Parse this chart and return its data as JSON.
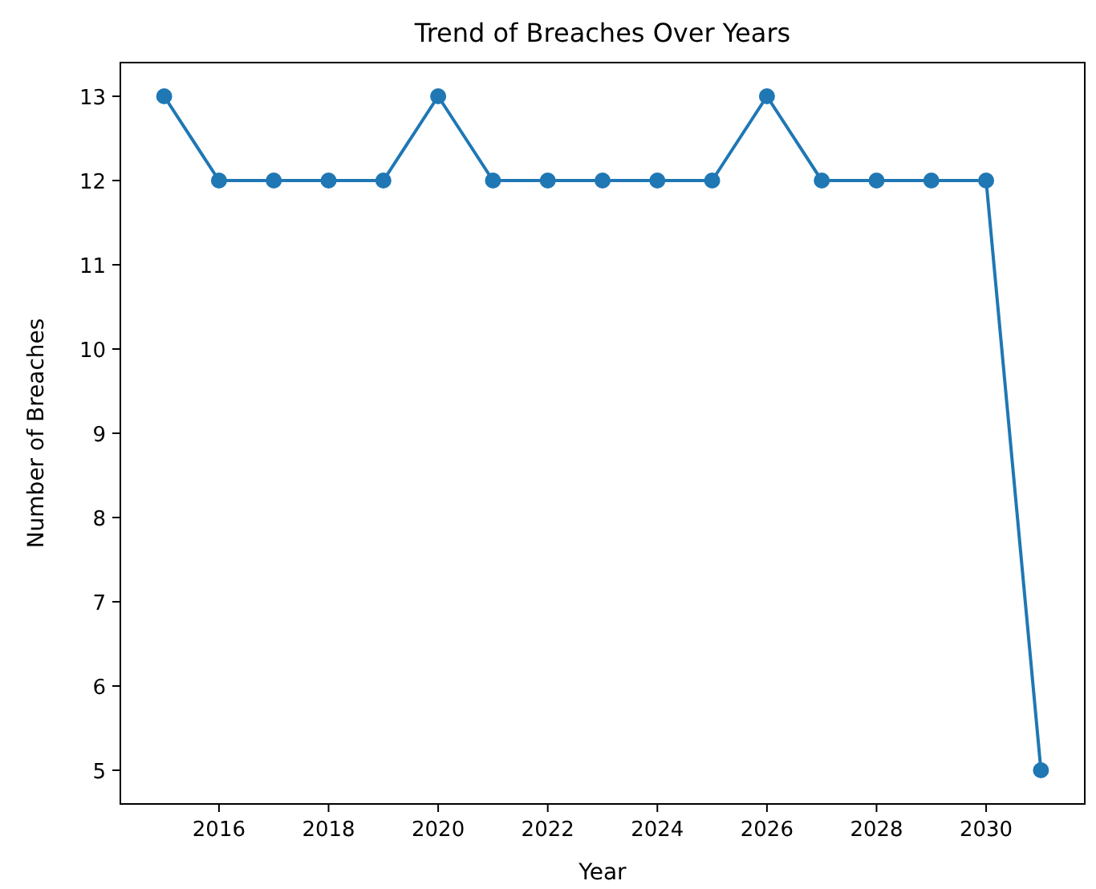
{
  "chart_data": {
    "type": "line",
    "title": "Trend of Breaches Over Years",
    "xlabel": "Year",
    "ylabel": "Number of Breaches",
    "x": [
      2015,
      2016,
      2017,
      2018,
      2019,
      2020,
      2021,
      2022,
      2023,
      2024,
      2025,
      2026,
      2027,
      2028,
      2029,
      2030,
      2031
    ],
    "series": [
      {
        "color": "#1f77b4",
        "values": [
          13,
          12,
          12,
          12,
          12,
          13,
          12,
          12,
          12,
          12,
          12,
          13,
          12,
          12,
          12,
          12,
          5
        ]
      }
    ],
    "xlim": [
      2014.2,
      2031.8
    ],
    "xticks": [
      2016,
      2018,
      2020,
      2022,
      2024,
      2026,
      2028,
      2030
    ],
    "ylim": [
      4.6,
      13.4
    ],
    "yticks": [
      5,
      6,
      7,
      8,
      9,
      10,
      11,
      12,
      13
    ],
    "grid": false,
    "marker": "circle",
    "line_style": "solid"
  }
}
